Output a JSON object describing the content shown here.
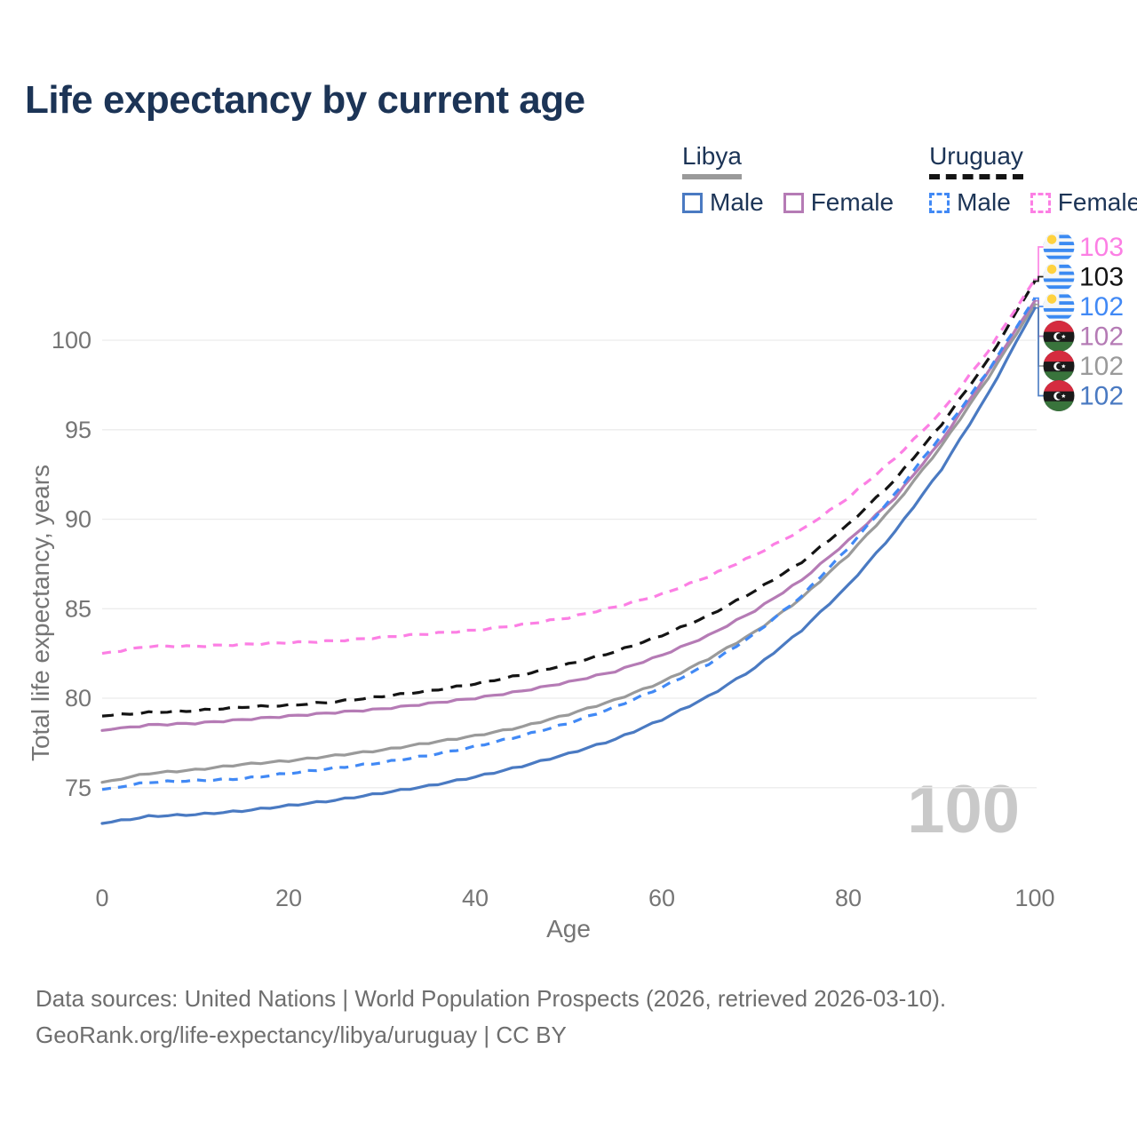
{
  "title": "Life expectancy by current age",
  "legend": {
    "groups": [
      {
        "name": "Libya",
        "line_style": "solid",
        "line_color": "#9a9a9a",
        "items": [
          {
            "label": "Male",
            "color": "#4a7ac2",
            "dash": false
          },
          {
            "label": "Female",
            "color": "#b57bb5",
            "dash": false
          }
        ]
      },
      {
        "name": "Uruguay",
        "line_style": "dashed",
        "line_color": "#141414",
        "items": [
          {
            "label": "Male",
            "color": "#4189f5",
            "dash": true
          },
          {
            "label": "Female",
            "color": "#fc7fe4",
            "dash": true
          }
        ]
      }
    ]
  },
  "chart_data": {
    "type": "line",
    "title": "Life expectancy by current age",
    "xlabel": "Age",
    "ylabel": "Total life expectancy, years",
    "x": [
      0,
      5,
      10,
      15,
      20,
      25,
      30,
      35,
      40,
      45,
      50,
      55,
      60,
      65,
      70,
      75,
      80,
      85,
      90,
      95,
      100
    ],
    "x_ticks": [
      0,
      20,
      40,
      60,
      80,
      100
    ],
    "y_ticks": [
      75,
      80,
      85,
      90,
      95,
      100
    ],
    "xlim": [
      0,
      100
    ],
    "ylim": [
      72.5,
      103.5
    ],
    "grid": true,
    "legend_position": "top-right",
    "watermark": "100",
    "series": [
      {
        "name": "Uruguay Female",
        "country": "uruguay",
        "dash": true,
        "color": "#fc7fe4",
        "end_label": "103",
        "values": [
          82.5,
          82.9,
          82.9,
          83.0,
          83.1,
          83.2,
          83.4,
          83.6,
          83.8,
          84.1,
          84.5,
          85.1,
          85.8,
          86.8,
          88.0,
          89.4,
          91.2,
          93.4,
          96.0,
          99.4,
          103.4
        ]
      },
      {
        "name": "Uruguay Both sexes",
        "country": "uruguay",
        "dash": true,
        "color": "#141414",
        "end_label": "103",
        "values": [
          79.0,
          79.2,
          79.3,
          79.5,
          79.6,
          79.8,
          80.1,
          80.4,
          80.8,
          81.3,
          81.9,
          82.6,
          83.5,
          84.6,
          86.0,
          87.6,
          89.7,
          92.2,
          95.3,
          98.9,
          103.3
        ]
      },
      {
        "name": "Uruguay Male",
        "country": "uruguay",
        "dash": true,
        "color": "#4189f5",
        "end_label": "102",
        "values": [
          74.9,
          75.3,
          75.4,
          75.5,
          75.8,
          76.1,
          76.4,
          76.8,
          77.3,
          77.9,
          78.6,
          79.5,
          80.6,
          81.9,
          83.6,
          85.7,
          88.4,
          91.4,
          94.7,
          98.3,
          102.35
        ]
      },
      {
        "name": "Libya Female",
        "country": "libya",
        "dash": false,
        "color": "#b57bb5",
        "end_label": "102",
        "values": [
          78.2,
          78.5,
          78.6,
          78.8,
          79.0,
          79.2,
          79.4,
          79.7,
          80.0,
          80.4,
          80.9,
          81.5,
          82.4,
          83.5,
          84.9,
          86.6,
          88.8,
          91.2,
          94.4,
          98.2,
          102.2
        ]
      },
      {
        "name": "Libya Both sexes",
        "country": "libya",
        "dash": false,
        "color": "#9a9a9a",
        "end_label": "102",
        "values": [
          75.3,
          75.8,
          76.0,
          76.3,
          76.5,
          76.8,
          77.1,
          77.5,
          77.9,
          78.4,
          79.1,
          79.9,
          80.9,
          82.2,
          83.7,
          85.6,
          88.0,
          90.8,
          94.1,
          97.9,
          102.0
        ]
      },
      {
        "name": "Libya Male",
        "country": "libya",
        "dash": false,
        "color": "#4a7ac2",
        "end_label": "102",
        "values": [
          73.0,
          73.4,
          73.5,
          73.7,
          74.0,
          74.3,
          74.7,
          75.1,
          75.6,
          76.2,
          76.9,
          77.7,
          78.8,
          80.1,
          81.7,
          83.8,
          86.3,
          89.3,
          92.8,
          97.0,
          101.8
        ]
      }
    ]
  },
  "footer": {
    "line1": "Data sources: United Nations | World Population Prospects (2026, retrieved 2026-03-10).",
    "line2": "GeoRank.org/life-expectancy/libya/uruguay | CC BY"
  }
}
